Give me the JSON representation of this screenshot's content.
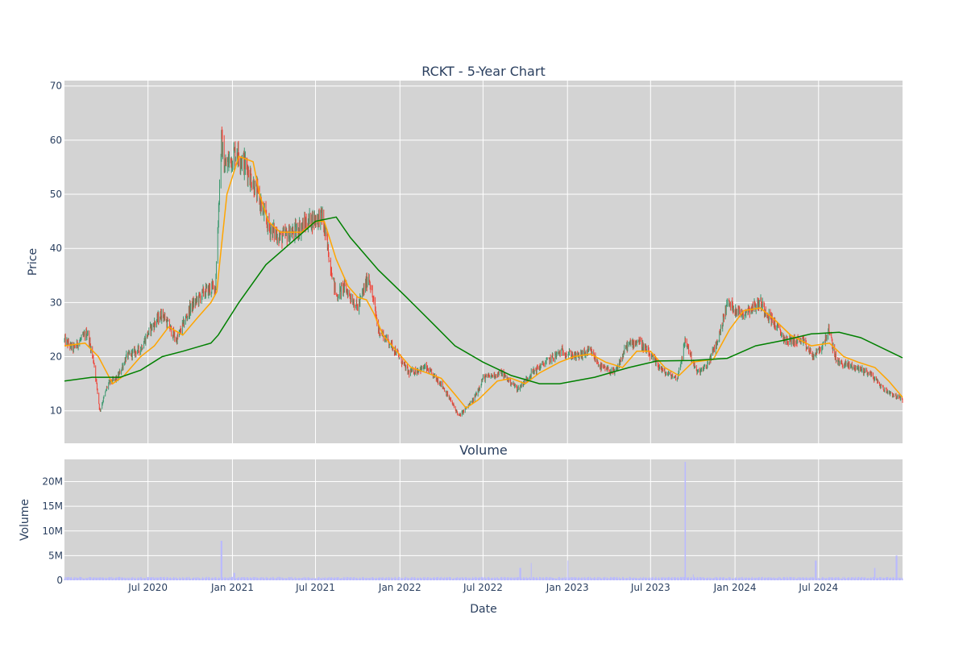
{
  "chart_data": [
    {
      "type": "candlestick",
      "title": "RCKT - 5-Year Chart",
      "xlabel": "",
      "ylabel": "Price",
      "xlim": [
        "2020-01-01",
        "2024-12-31"
      ],
      "ylim": [
        4,
        71
      ],
      "grid": true,
      "colors": {
        "increasing": "#3d9970",
        "decreasing": "#ef4136",
        "ma_short": "#ffa500",
        "ma_long": "#008000",
        "plot_bg": "#d3d3d3"
      },
      "y_ticks": [
        10,
        20,
        30,
        40,
        50,
        60,
        70
      ],
      "ohlc_keypoints": [
        [
          "2020-01-01",
          23
        ],
        [
          "2020-01-20",
          21.5
        ],
        [
          "2020-02-20",
          24.5
        ],
        [
          "2020-03-05",
          19
        ],
        [
          "2020-03-18",
          10
        ],
        [
          "2020-04-05",
          15
        ],
        [
          "2020-04-25",
          16
        ],
        [
          "2020-05-15",
          20
        ],
        [
          "2020-06-15",
          21.5
        ],
        [
          "2020-07-05",
          25
        ],
        [
          "2020-08-01",
          28
        ],
        [
          "2020-09-01",
          23
        ],
        [
          "2020-10-01",
          29
        ],
        [
          "2020-11-01",
          32
        ],
        [
          "2020-11-25",
          33
        ],
        [
          "2020-12-08",
          60
        ],
        [
          "2020-12-15",
          55
        ],
        [
          "2021-01-10",
          58
        ],
        [
          "2021-02-01",
          55
        ],
        [
          "2021-02-25",
          50
        ],
        [
          "2021-03-20",
          44
        ],
        [
          "2021-04-15",
          42
        ],
        [
          "2021-05-15",
          43
        ],
        [
          "2021-06-15",
          45
        ],
        [
          "2021-07-15",
          46
        ],
        [
          "2021-08-05",
          36
        ],
        [
          "2021-08-15",
          31
        ],
        [
          "2021-09-01",
          33
        ],
        [
          "2021-10-01",
          29
        ],
        [
          "2021-10-25",
          35
        ],
        [
          "2021-11-15",
          25
        ],
        [
          "2021-12-15",
          22
        ],
        [
          "2022-01-20",
          17
        ],
        [
          "2022-02-25",
          18
        ],
        [
          "2022-04-01",
          15
        ],
        [
          "2022-05-10",
          9
        ],
        [
          "2022-06-10",
          12
        ],
        [
          "2022-07-01",
          16
        ],
        [
          "2022-08-10",
          17
        ],
        [
          "2022-09-15",
          14
        ],
        [
          "2022-10-15",
          17
        ],
        [
          "2022-11-15",
          19
        ],
        [
          "2022-12-20",
          21
        ],
        [
          "2023-01-20",
          20
        ],
        [
          "2023-02-20",
          21
        ],
        [
          "2023-03-15",
          18
        ],
        [
          "2023-04-15",
          17
        ],
        [
          "2023-05-10",
          22
        ],
        [
          "2023-06-05",
          23
        ],
        [
          "2023-07-01",
          20
        ],
        [
          "2023-08-01",
          17
        ],
        [
          "2023-08-28",
          16
        ],
        [
          "2023-09-15",
          23
        ],
        [
          "2023-10-10",
          17
        ],
        [
          "2023-10-30",
          18
        ],
        [
          "2023-11-25",
          23
        ],
        [
          "2023-12-15",
          30
        ],
        [
          "2024-01-15",
          28
        ],
        [
          "2024-02-25",
          30
        ],
        [
          "2024-03-20",
          27
        ],
        [
          "2024-04-20",
          23
        ],
        [
          "2024-05-25",
          23
        ],
        [
          "2024-06-20",
          20
        ],
        [
          "2024-07-10",
          22
        ],
        [
          "2024-07-22",
          25
        ],
        [
          "2024-08-10",
          19
        ],
        [
          "2024-09-20",
          18
        ],
        [
          "2024-10-20",
          17
        ],
        [
          "2024-11-20",
          14
        ],
        [
          "2024-12-31",
          12
        ]
      ],
      "ma_short": [
        [
          "2020-01-01",
          22
        ],
        [
          "2020-02-15",
          22.5
        ],
        [
          "2020-03-15",
          20
        ],
        [
          "2020-04-15",
          15
        ],
        [
          "2020-05-10",
          16.5
        ],
        [
          "2020-06-15",
          20
        ],
        [
          "2020-07-15",
          22
        ],
        [
          "2020-08-15",
          25.5
        ],
        [
          "2020-09-15",
          24
        ],
        [
          "2020-10-15",
          27
        ],
        [
          "2020-11-15",
          30
        ],
        [
          "2020-11-28",
          32
        ],
        [
          "2020-12-05",
          38
        ],
        [
          "2020-12-20",
          50
        ],
        [
          "2021-01-15",
          57
        ],
        [
          "2021-02-15",
          56
        ],
        [
          "2021-03-01",
          50
        ],
        [
          "2021-03-20",
          45
        ],
        [
          "2021-04-15",
          43
        ],
        [
          "2021-06-01",
          43
        ],
        [
          "2021-07-01",
          45
        ],
        [
          "2021-07-20",
          45
        ],
        [
          "2021-08-15",
          38
        ],
        [
          "2021-09-10",
          33
        ],
        [
          "2021-10-01",
          31
        ],
        [
          "2021-10-20",
          30.5
        ],
        [
          "2021-11-05",
          28
        ],
        [
          "2021-11-25",
          24
        ],
        [
          "2021-12-25",
          21
        ],
        [
          "2022-01-25",
          18
        ],
        [
          "2022-03-01",
          17
        ],
        [
          "2022-04-01",
          16
        ],
        [
          "2022-05-01",
          13
        ],
        [
          "2022-05-25",
          10.5
        ],
        [
          "2022-06-20",
          12
        ],
        [
          "2022-08-01",
          15.5
        ],
        [
          "2022-09-01",
          16
        ],
        [
          "2022-10-01",
          15
        ],
        [
          "2022-11-01",
          17
        ],
        [
          "2022-12-15",
          19
        ],
        [
          "2023-01-15",
          20
        ],
        [
          "2023-02-20",
          20.5
        ],
        [
          "2023-03-25",
          19
        ],
        [
          "2023-05-01",
          18
        ],
        [
          "2023-06-01",
          21
        ],
        [
          "2023-07-01",
          21
        ],
        [
          "2023-08-01",
          18
        ],
        [
          "2023-09-01",
          16.5
        ],
        [
          "2023-10-01",
          19
        ],
        [
          "2023-11-15",
          19.5
        ],
        [
          "2023-12-20",
          25
        ],
        [
          "2024-01-20",
          28.5
        ],
        [
          "2024-02-25",
          29
        ],
        [
          "2024-03-25",
          27
        ],
        [
          "2024-05-01",
          24
        ],
        [
          "2024-06-15",
          22
        ],
        [
          "2024-07-25",
          22.5
        ],
        [
          "2024-08-25",
          20
        ],
        [
          "2024-09-25",
          19
        ],
        [
          "2024-11-01",
          18
        ],
        [
          "2024-12-01",
          15.5
        ],
        [
          "2024-12-31",
          12.5
        ]
      ],
      "ma_long": [
        [
          "2020-01-01",
          15.5
        ],
        [
          "2020-03-01",
          16.2
        ],
        [
          "2020-05-01",
          16.2
        ],
        [
          "2020-06-15",
          17.5
        ],
        [
          "2020-08-01",
          20
        ],
        [
          "2020-09-15",
          21
        ],
        [
          "2020-11-15",
          22.5
        ],
        [
          "2020-12-01",
          24
        ],
        [
          "2021-01-15",
          30
        ],
        [
          "2021-03-15",
          37
        ],
        [
          "2021-05-15",
          41.5
        ],
        [
          "2021-07-01",
          45
        ],
        [
          "2021-08-15",
          45.8
        ],
        [
          "2021-09-15",
          42
        ],
        [
          "2021-11-15",
          36
        ],
        [
          "2022-01-15",
          31
        ],
        [
          "2022-03-15",
          26
        ],
        [
          "2022-05-01",
          22
        ],
        [
          "2022-07-01",
          19
        ],
        [
          "2022-09-01",
          16.5
        ],
        [
          "2022-11-01",
          15
        ],
        [
          "2022-12-15",
          15
        ],
        [
          "2023-03-01",
          16.2
        ],
        [
          "2023-05-15",
          18
        ],
        [
          "2023-07-15",
          19.2
        ],
        [
          "2023-10-01",
          19.3
        ],
        [
          "2023-12-15",
          19.7
        ],
        [
          "2024-02-15",
          22
        ],
        [
          "2024-04-15",
          23
        ],
        [
          "2024-06-15",
          24.2
        ],
        [
          "2024-08-15",
          24.5
        ],
        [
          "2024-10-01",
          23.5
        ],
        [
          "2024-12-31",
          19.8
        ]
      ]
    },
    {
      "type": "bar",
      "title": "Volume",
      "xlabel": "Date",
      "ylabel": "Volume",
      "ylim": [
        0,
        24500000
      ],
      "grid": true,
      "colors": {
        "bar": "#b9b9ff",
        "plot_bg": "#d3d3d3"
      },
      "y_ticks": [
        0,
        5000000,
        10000000,
        15000000,
        20000000
      ],
      "y_tick_labels": [
        "0",
        "5M",
        "10M",
        "15M",
        "20M"
      ],
      "x_ticks": [
        "2020-07-01",
        "2021-01-01",
        "2021-07-01",
        "2022-01-01",
        "2022-07-01",
        "2023-01-01",
        "2023-07-01",
        "2024-01-01",
        "2024-07-01"
      ],
      "x_tick_labels": [
        "Jul 2020",
        "Jan 2021",
        "Jul 2021",
        "Jan 2022",
        "Jul 2022",
        "Jan 2023",
        "Jul 2023",
        "Jan 2024",
        "Jul 2024"
      ],
      "baseline_volume": 500000,
      "volume_spikes": [
        [
          "2020-12-08",
          8000000
        ],
        [
          "2021-01-05",
          1500000
        ],
        [
          "2022-09-20",
          2500000
        ],
        [
          "2022-10-15",
          3500000
        ],
        [
          "2023-01-01",
          4000000
        ],
        [
          "2023-09-15",
          24000000
        ],
        [
          "2023-10-01",
          1200000
        ],
        [
          "2024-06-25",
          4000000
        ],
        [
          "2024-11-01",
          2500000
        ],
        [
          "2024-12-18",
          5000000
        ]
      ]
    }
  ]
}
